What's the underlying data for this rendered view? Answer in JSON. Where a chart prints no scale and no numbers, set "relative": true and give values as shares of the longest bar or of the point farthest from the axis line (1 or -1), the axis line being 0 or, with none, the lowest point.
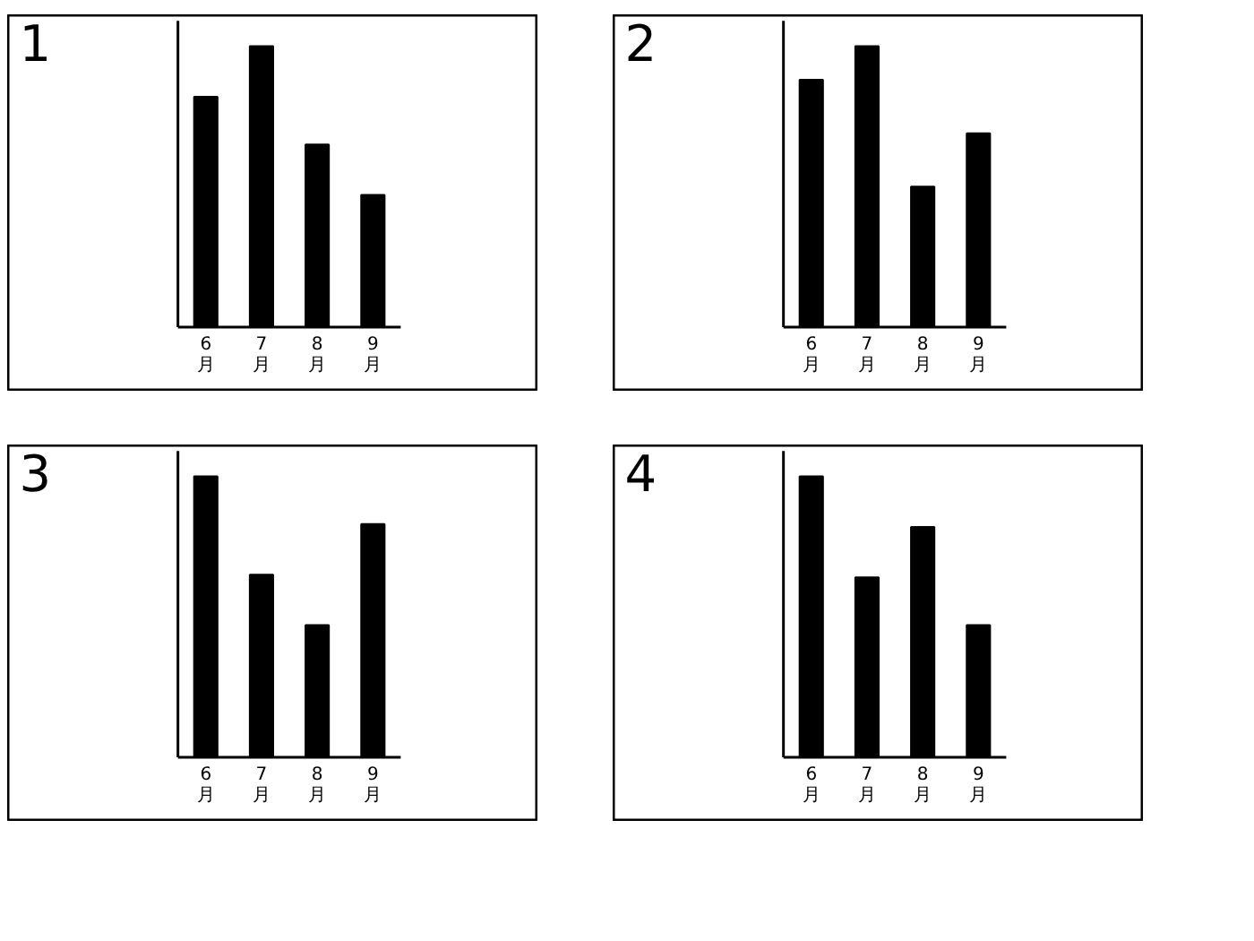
{
  "chart_data": [
    {
      "type": "bar",
      "title": "1",
      "categories": [
        "6月",
        "7月",
        "8月",
        "9月"
      ],
      "values": [
        0.82,
        1,
        0.65,
        0.47
      ],
      "color": "#000000",
      "relative": true
    },
    {
      "type": "bar",
      "title": "2",
      "categories": [
        "6月",
        "7月",
        "8月",
        "9月"
      ],
      "values": [
        0.88,
        1,
        0.5,
        0.69
      ],
      "color": "#000000",
      "relative": true
    },
    {
      "type": "bar",
      "title": "3",
      "categories": [
        "6月",
        "7月",
        "8月",
        "9月"
      ],
      "values": [
        1,
        0.65,
        0.47,
        0.83
      ],
      "color": "#000000",
      "relative": true
    },
    {
      "type": "bar",
      "title": "4",
      "categories": [
        "6月",
        "7月",
        "8月",
        "9月"
      ],
      "values": [
        1,
        0.64,
        0.82,
        0.47
      ],
      "color": "#000000",
      "relative": true
    }
  ]
}
